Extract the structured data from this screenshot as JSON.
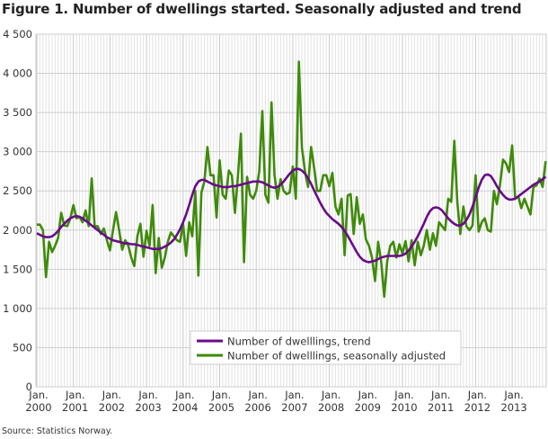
{
  "chart_data": {
    "type": "line",
    "title": "Figure 1. Number of dwellings started. Seasonally adjusted and trend",
    "source": "Source: Statistics Norway.",
    "xlabel": "",
    "ylabel": "",
    "ylim": [
      0,
      4500
    ],
    "yticks": [
      0,
      500,
      1000,
      1500,
      2000,
      2500,
      3000,
      3500,
      4000,
      4500
    ],
    "ytick_labels": [
      "0",
      "500",
      "1 000",
      "1 500",
      "2 000",
      "2 500",
      "3 000",
      "3 500",
      "4 000",
      "4 500"
    ],
    "xticks": [
      {
        "month_index": 0,
        "line1": "Jan.",
        "line2": "2000"
      },
      {
        "month_index": 12,
        "line1": "Jan.",
        "line2": "2001"
      },
      {
        "month_index": 24,
        "line1": "Jan.",
        "line2": "2002"
      },
      {
        "month_index": 36,
        "line1": "Jan.",
        "line2": "2003"
      },
      {
        "month_index": 48,
        "line1": "Jan.",
        "line2": "2004"
      },
      {
        "month_index": 60,
        "line1": "Jan.",
        "line2": "2005"
      },
      {
        "month_index": 72,
        "line1": "Jan.",
        "line2": "2006"
      },
      {
        "month_index": 84,
        "line1": "Jan.",
        "line2": "2007"
      },
      {
        "month_index": 96,
        "line1": "Jan.",
        "line2": "2008"
      },
      {
        "month_index": 108,
        "line1": "Jan.",
        "line2": "2009"
      },
      {
        "month_index": 120,
        "line1": "Jan.",
        "line2": "2010"
      },
      {
        "month_index": 132,
        "line1": "Jan.",
        "line2": "2011"
      },
      {
        "month_index": 144,
        "line1": "Jan.",
        "line2": "2012"
      },
      {
        "month_index": 156,
        "line1": "Jan.",
        "line2": "2013"
      }
    ],
    "x_start": "Jan. 2000",
    "frequency": "monthly",
    "grid": true,
    "legend_position": "bottom-center",
    "series": [
      {
        "name": "Number of dwelllings, trend",
        "color": "#6a0a8a",
        "values": [
          1960,
          1940,
          1920,
          1910,
          1910,
          1920,
          1950,
          1990,
          2040,
          2080,
          2120,
          2150,
          2170,
          2180,
          2170,
          2150,
          2120,
          2090,
          2060,
          2030,
          2000,
          1970,
          1940,
          1910,
          1890,
          1870,
          1860,
          1850,
          1840,
          1830,
          1830,
          1820,
          1820,
          1810,
          1800,
          1790,
          1780,
          1770,
          1760,
          1760,
          1760,
          1770,
          1790,
          1810,
          1840,
          1880,
          1940,
          2010,
          2100,
          2200,
          2320,
          2450,
          2560,
          2620,
          2640,
          2640,
          2620,
          2600,
          2580,
          2570,
          2560,
          2550,
          2550,
          2550,
          2560,
          2560,
          2570,
          2580,
          2590,
          2600,
          2610,
          2620,
          2620,
          2620,
          2610,
          2590,
          2570,
          2550,
          2540,
          2550,
          2580,
          2620,
          2670,
          2720,
          2760,
          2780,
          2780,
          2760,
          2720,
          2660,
          2590,
          2510,
          2430,
          2350,
          2280,
          2220,
          2180,
          2140,
          2110,
          2080,
          2040,
          1990,
          1930,
          1860,
          1790,
          1720,
          1660,
          1620,
          1600,
          1590,
          1600,
          1610,
          1630,
          1650,
          1660,
          1670,
          1670,
          1670,
          1670,
          1670,
          1680,
          1700,
          1740,
          1790,
          1850,
          1920,
          2000,
          2080,
          2170,
          2240,
          2280,
          2290,
          2280,
          2250,
          2200,
          2150,
          2110,
          2080,
          2060,
          2060,
          2080,
          2130,
          2200,
          2300,
          2420,
          2540,
          2640,
          2700,
          2710,
          2690,
          2630,
          2560,
          2500,
          2450,
          2410,
          2390,
          2390,
          2400,
          2430,
          2460,
          2490,
          2520,
          2550,
          2580,
          2600,
          2620,
          2650,
          2680
        ]
      },
      {
        "name": "Number of dwelllings, seasonally adjusted",
        "color": "#3f8a0a",
        "values": [
          2070,
          2070,
          2000,
          1400,
          1850,
          1720,
          1800,
          1900,
          2220,
          2060,
          2050,
          2150,
          2320,
          2150,
          2170,
          2100,
          2250,
          2050,
          2660,
          2050,
          2050,
          1950,
          2020,
          1870,
          1740,
          2000,
          2230,
          2000,
          1750,
          1870,
          1800,
          1650,
          1540,
          1920,
          2080,
          1660,
          1990,
          1800,
          2320,
          1450,
          1900,
          1520,
          1650,
          1850,
          1970,
          1920,
          1870,
          1850,
          2080,
          1670,
          2100,
          1920,
          2500,
          1420,
          2480,
          2620,
          3060,
          2700,
          2700,
          2160,
          2890,
          2450,
          2400,
          2760,
          2700,
          2220,
          2700,
          3230,
          1590,
          2680,
          2450,
          2400,
          2500,
          2750,
          3520,
          2450,
          2350,
          3630,
          2700,
          2400,
          2650,
          2500,
          2460,
          2480,
          2810,
          2400,
          4150,
          3050,
          2750,
          2550,
          3060,
          2800,
          2500,
          2500,
          2700,
          2700,
          2560,
          2730,
          2300,
          2200,
          2400,
          1680,
          2440,
          2460,
          1950,
          2420,
          2080,
          2200,
          1880,
          1800,
          1650,
          1350,
          1850,
          1600,
          1150,
          1600,
          1800,
          1850,
          1650,
          1820,
          1700,
          1860,
          1600,
          1870,
          1550,
          1850,
          1680,
          1800,
          2000,
          1750,
          1960,
          1800,
          2100,
          2050,
          2000,
          2400,
          2360,
          3140,
          2350,
          1950,
          2300,
          2050,
          2000,
          2060,
          2700,
          1980,
          2100,
          2150,
          2000,
          1980,
          2500,
          2330,
          2570,
          2900,
          2850,
          2740,
          3080,
          2400,
          2430,
          2280,
          2400,
          2300,
          2200,
          2550,
          2570,
          2660,
          2550,
          2880
        ]
      }
    ]
  }
}
